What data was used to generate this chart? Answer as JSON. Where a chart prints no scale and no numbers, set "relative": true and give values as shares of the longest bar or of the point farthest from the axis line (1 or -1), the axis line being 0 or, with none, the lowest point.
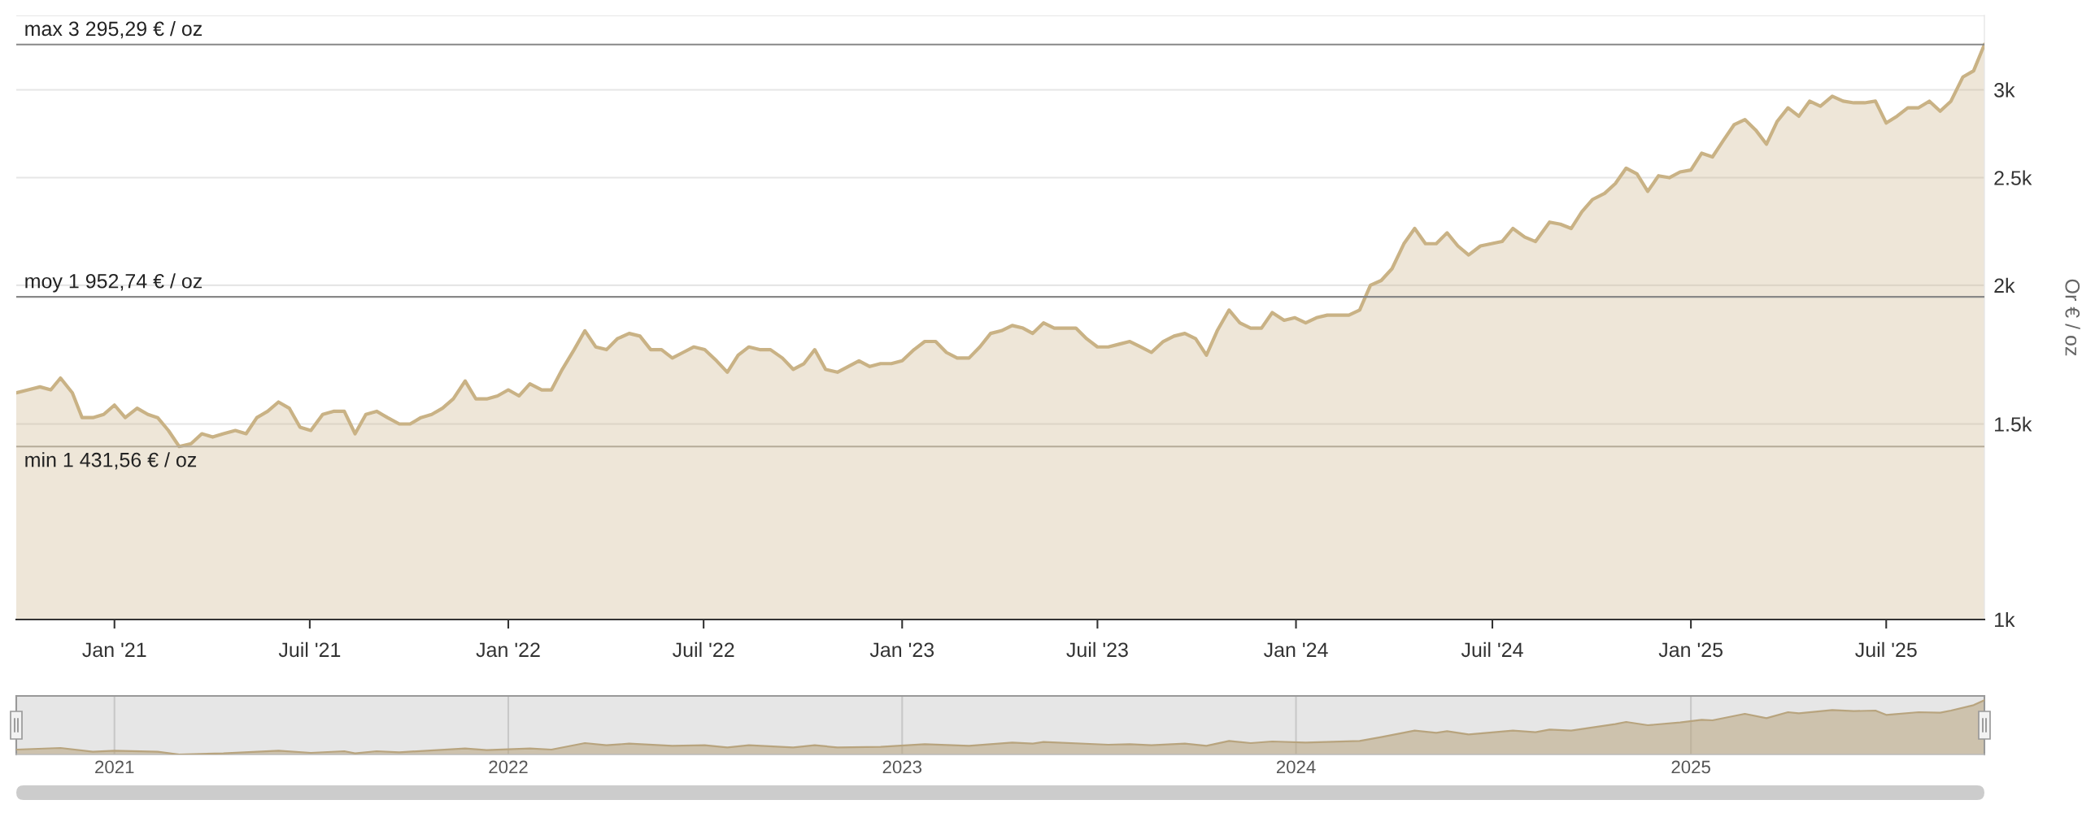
{
  "chart_data": [
    {
      "type": "area",
      "ylabel": "Or € / oz",
      "log": true,
      "grid": "y",
      "color": "#c9b285",
      "x": [
        "2020-10-02",
        "2020-10-13",
        "2020-10-24",
        "2020-11-03",
        "2020-11-12",
        "2020-11-23",
        "2020-12-02",
        "2020-12-12",
        "2020-12-22",
        "2021-01-01",
        "2021-01-11",
        "2021-01-22",
        "2021-02-01",
        "2021-02-10",
        "2021-02-20",
        "2021-03-02",
        "2021-03-13",
        "2021-03-23",
        "2021-04-02",
        "2021-04-12",
        "2021-04-23",
        "2021-05-03",
        "2021-05-13",
        "2021-05-23",
        "2021-06-02",
        "2021-06-12",
        "2021-06-22",
        "2021-07-02",
        "2021-07-13",
        "2021-07-23",
        "2021-08-02",
        "2021-08-12",
        "2021-08-22",
        "2021-09-01",
        "2021-09-11",
        "2021-09-22",
        "2021-10-02",
        "2021-10-12",
        "2021-10-22",
        "2021-11-01",
        "2021-11-11",
        "2021-11-22",
        "2021-12-02",
        "2021-12-12",
        "2021-12-22",
        "2022-01-01",
        "2022-01-11",
        "2022-01-21",
        "2022-02-01",
        "2022-02-10",
        "2022-02-20",
        "2022-03-03",
        "2022-03-13",
        "2022-03-23",
        "2022-04-02",
        "2022-04-12",
        "2022-04-23",
        "2022-05-03",
        "2022-05-13",
        "2022-05-23",
        "2022-06-02",
        "2022-06-12",
        "2022-06-22",
        "2022-07-02",
        "2022-07-13",
        "2022-07-23",
        "2022-08-02",
        "2022-08-12",
        "2022-08-22",
        "2022-09-01",
        "2022-09-12",
        "2022-09-22",
        "2022-10-02",
        "2022-10-12",
        "2022-10-22",
        "2022-11-02",
        "2022-11-12",
        "2022-11-22",
        "2022-12-02",
        "2022-12-12",
        "2022-12-22",
        "2023-01-01",
        "2023-01-12",
        "2023-01-22",
        "2023-02-01",
        "2023-02-11",
        "2023-02-21",
        "2023-03-04",
        "2023-03-14",
        "2023-03-24",
        "2023-04-03",
        "2023-04-13",
        "2023-04-23",
        "2023-05-02",
        "2023-05-12",
        "2023-05-22",
        "2023-06-01",
        "2023-06-11",
        "2023-06-21",
        "2023-07-01",
        "2023-07-11",
        "2023-07-21",
        "2023-07-31",
        "2023-08-10",
        "2023-08-20",
        "2023-08-31",
        "2023-09-10",
        "2023-09-20",
        "2023-09-30",
        "2023-10-10",
        "2023-10-20",
        "2023-10-31",
        "2023-11-10",
        "2023-11-20",
        "2023-11-30",
        "2023-12-10",
        "2023-12-21",
        "2023-12-31",
        "2024-01-10",
        "2024-01-20",
        "2024-01-30",
        "2024-02-09",
        "2024-02-19",
        "2024-02-29",
        "2024-03-10",
        "2024-03-20",
        "2024-03-30",
        "2024-04-10",
        "2024-04-20",
        "2024-04-30",
        "2024-05-10",
        "2024-05-20",
        "2024-05-30",
        "2024-06-09",
        "2024-06-20",
        "2024-06-30",
        "2024-07-10",
        "2024-07-20",
        "2024-07-31",
        "2024-08-10",
        "2024-08-23",
        "2024-09-02",
        "2024-09-12",
        "2024-09-22",
        "2024-10-02",
        "2024-10-13",
        "2024-10-23",
        "2024-11-02",
        "2024-11-12",
        "2024-11-22",
        "2024-12-02",
        "2024-12-12",
        "2024-12-22",
        "2025-01-01",
        "2025-01-11",
        "2025-01-21",
        "2025-01-31",
        "2025-02-10",
        "2025-02-20",
        "2025-03-02",
        "2025-03-12",
        "2025-03-22",
        "2025-04-01",
        "2025-04-11",
        "2025-04-21",
        "2025-05-01",
        "2025-05-12",
        "2025-05-22",
        "2025-06-01",
        "2025-06-11",
        "2025-06-21",
        "2025-07-01",
        "2025-07-11",
        "2025-07-21",
        "2025-07-31",
        "2025-08-10",
        "2025-08-20",
        "2025-08-30",
        "2025-09-10",
        "2025-09-20",
        "2025-09-30"
      ],
      "values": [
        1600,
        1610,
        1620,
        1610,
        1650,
        1600,
        1520,
        1520,
        1530,
        1560,
        1520,
        1550,
        1530,
        1520,
        1480,
        1431.56,
        1440,
        1470,
        1460,
        1470,
        1480,
        1470,
        1520,
        1540,
        1570,
        1550,
        1490,
        1480,
        1530,
        1540,
        1540,
        1470,
        1530,
        1540,
        1520,
        1500,
        1500,
        1520,
        1530,
        1550,
        1580,
        1640,
        1580,
        1580,
        1590,
        1610,
        1590,
        1630,
        1610,
        1610,
        1680,
        1750,
        1820,
        1760,
        1750,
        1790,
        1810,
        1800,
        1750,
        1750,
        1720,
        1740,
        1760,
        1750,
        1710,
        1670,
        1730,
        1760,
        1750,
        1750,
        1720,
        1680,
        1700,
        1750,
        1680,
        1670,
        1690,
        1710,
        1690,
        1700,
        1700,
        1710,
        1750,
        1780,
        1780,
        1740,
        1720,
        1720,
        1760,
        1810,
        1820,
        1840,
        1830,
        1810,
        1850,
        1830,
        1830,
        1830,
        1790,
        1760,
        1760,
        1770,
        1780,
        1760,
        1740,
        1780,
        1800,
        1810,
        1790,
        1730,
        1820,
        1900,
        1850,
        1830,
        1830,
        1890,
        1860,
        1870,
        1850,
        1870,
        1880,
        1880,
        1880,
        1900,
        2000,
        2020,
        2070,
        2180,
        2250,
        2180,
        2180,
        2230,
        2170,
        2130,
        2170,
        2180,
        2190,
        2250,
        2210,
        2190,
        2280,
        2270,
        2250,
        2330,
        2390,
        2420,
        2470,
        2550,
        2520,
        2430,
        2510,
        2500,
        2530,
        2540,
        2630,
        2610,
        2700,
        2790,
        2820,
        2760,
        2680,
        2810,
        2890,
        2840,
        2930,
        2900,
        2960,
        2930,
        2920,
        2920,
        2930,
        2800,
        2840,
        2890,
        2890,
        2930,
        2870,
        2930,
        3080,
        3120,
        3295.29
      ],
      "xlim": [
        "2020-10-02",
        "2025-09-30"
      ],
      "xticks": [
        {
          "value": "2021-01-01",
          "label": "Jan '21"
        },
        {
          "value": "2021-07-01",
          "label": "Juil '21"
        },
        {
          "value": "2022-01-01",
          "label": "Jan '22"
        },
        {
          "value": "2022-07-01",
          "label": "Juil '22"
        },
        {
          "value": "2023-01-01",
          "label": "Jan '23"
        },
        {
          "value": "2023-07-01",
          "label": "Juil '23"
        },
        {
          "value": "2024-01-01",
          "label": "Jan '24"
        },
        {
          "value": "2024-07-01",
          "label": "Juil '24"
        },
        {
          "value": "2025-01-01",
          "label": "Jan '25"
        },
        {
          "value": "2025-07-01",
          "label": "Juil '25"
        }
      ],
      "ylim": [
        1000,
        3500
      ],
      "yticks": [
        {
          "value": 1000,
          "label": "1k"
        },
        {
          "value": 1500,
          "label": "1.5k"
        },
        {
          "value": 2000,
          "label": "2k"
        },
        {
          "value": 2500,
          "label": "2.5k"
        },
        {
          "value": 3000,
          "label": "3k"
        },
        {
          "value": 3500,
          "label": null
        }
      ],
      "ref_lines": [
        {
          "axis": "y",
          "value": 3295.29,
          "label": "max 3 295,29 € / oz",
          "color": "#888888"
        },
        {
          "axis": "y",
          "value": 1952.74,
          "label": "moy 1 952,74 € / oz",
          "color": "#888888"
        },
        {
          "axis": "y",
          "value": 1431.56,
          "label": "min 1 431,56 € / oz",
          "color": "#b5ab98"
        }
      ]
    },
    {
      "type": "area",
      "relative": true,
      "grid": "x",
      "tick_labels": "x",
      "color": "#b8a47e",
      "x": [
        "2020-10-02",
        "2020-11-12",
        "2020-12-12",
        "2021-01-01",
        "2021-02-10",
        "2021-03-02",
        "2021-04-12",
        "2021-06-02",
        "2021-07-02",
        "2021-08-02",
        "2021-08-12",
        "2021-09-01",
        "2021-09-22",
        "2021-11-22",
        "2021-12-12",
        "2022-01-21",
        "2022-02-10",
        "2022-03-13",
        "2022-04-02",
        "2022-04-23",
        "2022-06-02",
        "2022-07-02",
        "2022-07-23",
        "2022-08-12",
        "2022-09-22",
        "2022-10-12",
        "2022-11-02",
        "2022-12-12",
        "2023-01-22",
        "2023-03-04",
        "2023-04-13",
        "2023-05-02",
        "2023-05-12",
        "2023-07-11",
        "2023-07-31",
        "2023-08-20",
        "2023-09-20",
        "2023-10-10",
        "2023-10-31",
        "2023-11-20",
        "2023-12-10",
        "2024-01-10",
        "2024-02-29",
        "2024-03-20",
        "2024-04-20",
        "2024-05-10",
        "2024-05-20",
        "2024-06-09",
        "2024-07-20",
        "2024-08-10",
        "2024-08-23",
        "2024-09-12",
        "2024-10-23",
        "2024-11-02",
        "2024-11-22",
        "2024-12-22",
        "2025-01-11",
        "2025-01-21",
        "2025-02-20",
        "2025-03-12",
        "2025-04-01",
        "2025-04-11",
        "2025-05-12",
        "2025-06-01",
        "2025-06-21",
        "2025-07-01",
        "2025-07-31",
        "2025-08-20",
        "2025-08-30",
        "2025-09-20",
        "2025-09-30"
      ],
      "values": [
        0.09,
        0.12,
        0.05,
        0.07,
        0.05,
        0,
        0.02,
        0.07,
        0.03,
        0.06,
        0.02,
        0.06,
        0.04,
        0.11,
        0.08,
        0.11,
        0.09,
        0.21,
        0.17,
        0.2,
        0.16,
        0.17,
        0.13,
        0.17,
        0.13,
        0.17,
        0.13,
        0.14,
        0.19,
        0.16,
        0.22,
        0.2,
        0.23,
        0.18,
        0.19,
        0.17,
        0.2,
        0.16,
        0.25,
        0.21,
        0.24,
        0.22,
        0.25,
        0.32,
        0.44,
        0.4,
        0.43,
        0.37,
        0.44,
        0.41,
        0.46,
        0.44,
        0.56,
        0.6,
        0.54,
        0.59,
        0.64,
        0.63,
        0.75,
        0.67,
        0.78,
        0.76,
        0.82,
        0.8,
        0.81,
        0.73,
        0.78,
        0.77,
        0.81,
        0.91,
        1
      ],
      "xlim": [
        "2020-10-02",
        "2025-09-30"
      ],
      "xticks": [
        {
          "value": "2021-01-01",
          "label": "2021"
        },
        {
          "value": "2022-01-01",
          "label": "2022"
        },
        {
          "value": "2023-01-01",
          "label": "2023"
        },
        {
          "value": "2024-01-01",
          "label": "2024"
        },
        {
          "value": "2025-01-01",
          "label": "2025"
        }
      ]
    }
  ]
}
